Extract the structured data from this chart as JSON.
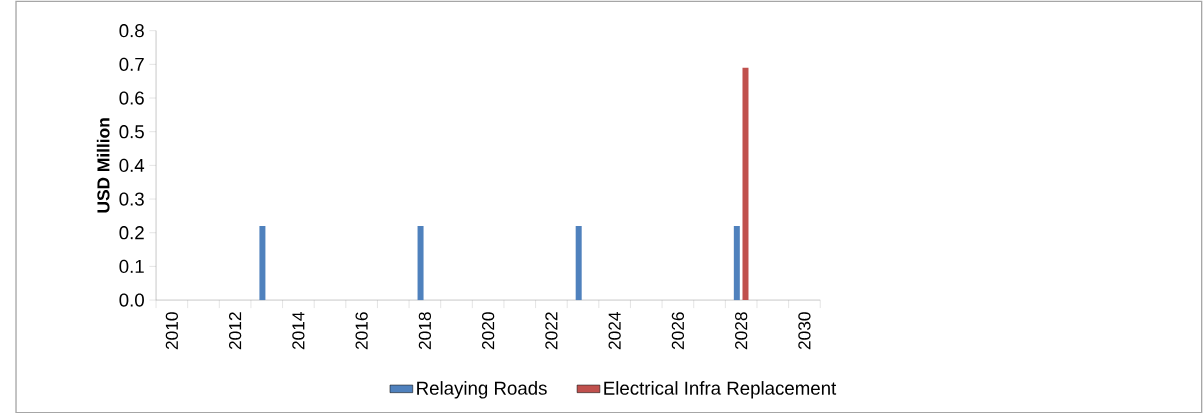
{
  "chart_data": {
    "type": "bar",
    "ylabel": "USD Million",
    "categories": [
      "2010",
      null,
      "2012",
      null,
      "2014",
      null,
      "2016",
      null,
      "2018",
      null,
      "2020",
      null,
      "2022",
      null,
      "2024",
      null,
      "2026",
      null,
      "2028",
      null,
      "2030"
    ],
    "series": [
      {
        "name": "Relaying Roads",
        "color": "#4f81bd",
        "values": [
          null,
          null,
          null,
          0.22,
          null,
          null,
          null,
          null,
          0.22,
          null,
          null,
          null,
          null,
          0.22,
          null,
          null,
          null,
          null,
          0.22,
          null,
          null
        ]
      },
      {
        "name": "Electrical Infra Replacement",
        "color": "#c0504d",
        "values": [
          null,
          null,
          null,
          null,
          null,
          null,
          null,
          null,
          null,
          null,
          null,
          null,
          null,
          null,
          null,
          null,
          null,
          null,
          0.69,
          null,
          null
        ]
      }
    ],
    "ylim": [
      0,
      0.8
    ],
    "yticks": [
      {
        "value": 0,
        "label": "0.0"
      },
      {
        "value": 0.1,
        "label": "0.1"
      },
      {
        "value": 0.2,
        "label": "0.2"
      },
      {
        "value": 0.3,
        "label": "0.3"
      },
      {
        "value": 0.4,
        "label": "0.4"
      },
      {
        "value": 0.5,
        "label": "0.5"
      },
      {
        "value": 0.6,
        "label": "0.6"
      },
      {
        "value": 0.7,
        "label": "0.7"
      },
      {
        "value": 0.8,
        "label": "0.8"
      }
    ],
    "grid": false,
    "legend": "bottom"
  }
}
